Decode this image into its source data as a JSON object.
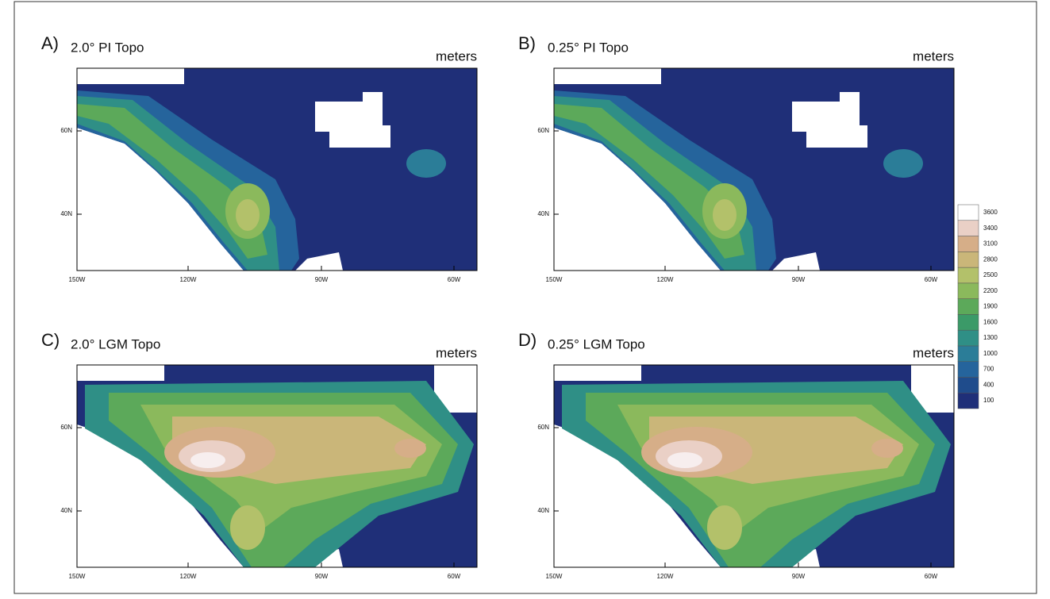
{
  "panels": [
    {
      "label": "A)",
      "title": "2.0° PI Topo",
      "units": "meters"
    },
    {
      "label": "B)",
      "title": "0.25° PI Topo",
      "units": "meters"
    },
    {
      "label": "C)",
      "title": "2.0° LGM Topo",
      "units": "meters"
    },
    {
      "label": "D)",
      "title": "0.25° LGM Topo",
      "units": "meters"
    }
  ],
  "x_ticks": [
    "150W",
    "120W",
    "90W",
    "60W"
  ],
  "y_ticks": [
    "60N",
    "40N"
  ],
  "colorbar": {
    "levels": [
      100,
      400,
      700,
      1000,
      1300,
      1600,
      1900,
      2200,
      2500,
      2800,
      3100,
      3400,
      3600
    ],
    "colors": [
      "#1f2f78",
      "#1f4c8c",
      "#25649c",
      "#2b7d98",
      "#2f8f86",
      "#3b9a68",
      "#5ca95a",
      "#8bb95c",
      "#b3c16a",
      "#cab679",
      "#d6ae88",
      "#ead0c6",
      "#ffffff"
    ]
  }
}
